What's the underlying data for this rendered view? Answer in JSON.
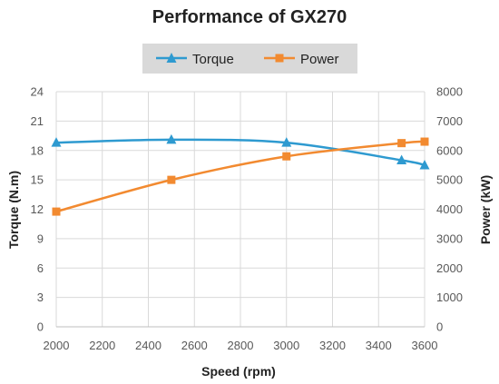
{
  "chart_data": {
    "type": "line",
    "title": "Performance of GX270",
    "xlabel": "Speed (rpm)",
    "ylabel_left": "Torque (N.m)",
    "ylabel_right": "Power (kW)",
    "x_ticks": [
      "2000",
      "2200",
      "2400",
      "2600",
      "2800",
      "3000",
      "3200",
      "3400",
      "3600"
    ],
    "y_left_ticks": [
      "0",
      "3",
      "6",
      "9",
      "12",
      "15",
      "18",
      "21",
      "24"
    ],
    "y_right_ticks": [
      "0",
      "1000",
      "2000",
      "3000",
      "4000",
      "5000",
      "6000",
      "7000",
      "8000"
    ],
    "xlim": [
      2000,
      3600
    ],
    "ylim_left": [
      0,
      24
    ],
    "ylim_right": [
      0,
      8000
    ],
    "grid": true,
    "legend": "top",
    "series": [
      {
        "name": "Torque",
        "axis": "left",
        "color": "#2E9AD0",
        "marker": "triangle",
        "x": [
          2000,
          2500,
          3000,
          3500,
          3600
        ],
        "y": [
          18.8,
          19.1,
          18.8,
          17.0,
          16.5
        ]
      },
      {
        "name": "Power",
        "axis": "right",
        "color": "#F28A30",
        "marker": "square",
        "x": [
          2000,
          2500,
          3000,
          3500,
          3600
        ],
        "y": [
          3920,
          5000,
          5800,
          6250,
          6300
        ]
      }
    ]
  }
}
